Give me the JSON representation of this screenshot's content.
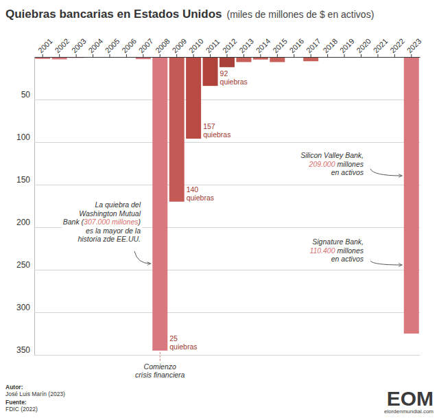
{
  "chart_data": {
    "type": "bar",
    "title": "Quiebras bancarias en Estados Unidos",
    "subtitle": "(miles de millones de $ en activos)",
    "categories": [
      "2001",
      "2002",
      "2003",
      "2004",
      "2005",
      "2006",
      "2007",
      "2008",
      "2009",
      "2010",
      "2011",
      "2012",
      "2013",
      "2014",
      "2015",
      "2016",
      "2017",
      "2018",
      "2019",
      "2020",
      "2021",
      "2022",
      "2023"
    ],
    "values": [
      2.3,
      2.8,
      1.1,
      0.2,
      0,
      0,
      2.6,
      345,
      170,
      96,
      34,
      12,
      6,
      3,
      6,
      0.3,
      5,
      0,
      0.2,
      0.5,
      0,
      0,
      325
    ],
    "colors": [
      "#d9787e",
      "#d9787e",
      "#d9787e",
      "#d9787e",
      "#d9787e",
      "#d9787e",
      "#d9787e",
      "#d9787e",
      "#c45a55",
      "#b94a44",
      "#b0443c",
      "#a8413a",
      "#c8605a",
      "#c8605a",
      "#c8605a",
      "#c8605a",
      "#c8605a",
      "#c8605a",
      "#c8605a",
      "#c8605a",
      "#c8605a",
      "#c8605a",
      "#d9787e"
    ],
    "ylim": [
      0,
      350
    ],
    "yticks": [
      50,
      100,
      150,
      200,
      250,
      300,
      350
    ],
    "grid": true,
    "failure_labels": [
      {
        "category": "2008",
        "lines": [
          "25",
          "quiebras"
        ]
      },
      {
        "category": "2009",
        "lines": [
          "140",
          "quiebras"
        ]
      },
      {
        "category": "2010",
        "lines": [
          "157",
          "quiebras"
        ]
      },
      {
        "category": "2011",
        "lines": [
          "92",
          "quiebras"
        ]
      }
    ],
    "annotations": [
      {
        "category": "2008",
        "lines": [
          "La quiebra del",
          "Washington Mutual",
          "Bank (307.000 millones)",
          "es la mayor de la",
          "historia zde EE.UU."
        ],
        "highlight": "307.000 millones"
      },
      {
        "category": "2023",
        "lines": [
          "Silicon Valley Bank,",
          "209.000 millones",
          "en activos"
        ],
        "highlight": "209.000"
      },
      {
        "category": "2023",
        "lines": [
          "Signature Bank,",
          "110.400 millones",
          "en activos"
        ],
        "highlight": "110.400"
      },
      {
        "category": "2008",
        "lines": [
          "Comienzo",
          "crisis financiera"
        ]
      }
    ],
    "credits": [
      [
        "Autor:",
        "José Luis Marín (2023)"
      ],
      [
        "Fuente:",
        "FDIC (2022)"
      ]
    ],
    "logo": [
      "EOM",
      "elordenmundial.com"
    ]
  }
}
